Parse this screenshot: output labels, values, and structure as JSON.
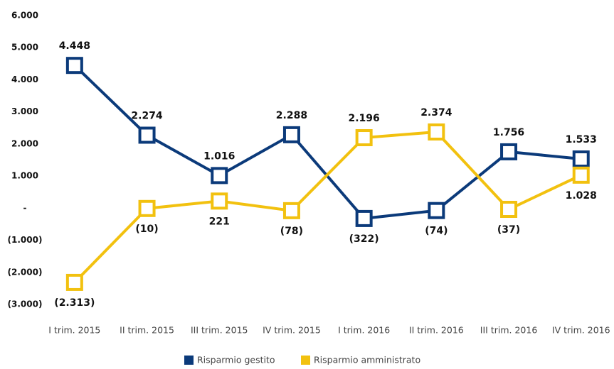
{
  "chart_data": {
    "type": "line",
    "categories": [
      "I trim. 2015",
      "II trim. 2015",
      "III trim. 2015",
      "IV trim. 2015",
      "I trim. 2016",
      "II trim. 2016",
      "III trim. 2016",
      "IV trim. 2016"
    ],
    "series": [
      {
        "name": "Risparmio gestito",
        "color": "#0b3a7a",
        "values": [
          4448,
          2274,
          1016,
          2288,
          -322,
          -74,
          1756,
          1533
        ],
        "value_labels": [
          "4.448",
          "2.274",
          "1.016",
          "2.288",
          "(322)",
          "(74)",
          "1.756",
          "1.533"
        ]
      },
      {
        "name": "Risparmio amministrato",
        "color": "#f2c10f",
        "values": [
          -2313,
          -10,
          221,
          -78,
          2196,
          2374,
          -37,
          1028
        ],
        "value_labels": [
          "(2.313)",
          "(10)",
          "221",
          "(78)",
          "2.196",
          "2.374",
          "(37)",
          "1.028"
        ]
      }
    ],
    "ylim": [
      -3000,
      6000
    ],
    "yticks": [
      {
        "value": -3000,
        "label": "(3.000)"
      },
      {
        "value": -2000,
        "label": "(2.000)"
      },
      {
        "value": -1000,
        "label": "(1.000)"
      },
      {
        "value": 0,
        "label": "-"
      },
      {
        "value": 1000,
        "label": "1.000"
      },
      {
        "value": 2000,
        "label": "2.000"
      },
      {
        "value": 3000,
        "label": "3.000"
      },
      {
        "value": 4000,
        "label": "4.000"
      },
      {
        "value": 5000,
        "label": "5.000"
      },
      {
        "value": 6000,
        "label": "6.000"
      }
    ],
    "grid": false,
    "legend": "bottom"
  }
}
